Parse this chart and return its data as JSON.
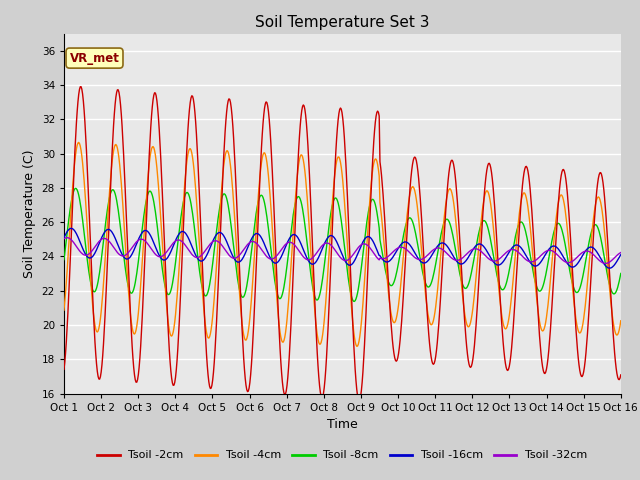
{
  "title": "Soil Temperature Set 3",
  "xlabel": "Time",
  "ylabel": "Soil Temperature (C)",
  "annotation": "VR_met",
  "background_color": "#d0d0d0",
  "plot_bg_color": "#e8e8e8",
  "ylim": [
    16,
    37
  ],
  "yticks": [
    16,
    18,
    20,
    22,
    24,
    26,
    28,
    30,
    32,
    34,
    36
  ],
  "x_labels": [
    "Oct 1",
    "Oct 2",
    "Oct 3",
    "Oct 4",
    "Oct 5",
    "Oct 6",
    "Oct 7",
    "Oct 8",
    "Oct 9",
    "Oct 10",
    "Oct 11",
    "Oct 12",
    "Oct 13",
    "Oct 14",
    "Oct 15",
    "Oct 16"
  ],
  "series_colors": [
    "#cc0000",
    "#ff8800",
    "#00cc00",
    "#0000cc",
    "#9900cc"
  ],
  "series_labels": [
    "Tsoil -2cm",
    "Tsoil -4cm",
    "Tsoil -8cm",
    "Tsoil -16cm",
    "Tsoil -32cm"
  ],
  "n_days": 15,
  "n_points_per_day": 48
}
